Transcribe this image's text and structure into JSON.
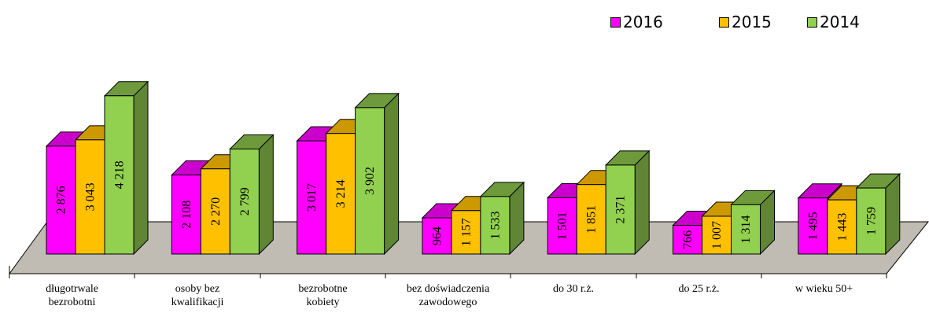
{
  "chart_data": {
    "type": "bar",
    "categories": [
      [
        "długotrwale",
        "bezrobotni"
      ],
      [
        "osoby bez",
        "kwalifikacji"
      ],
      [
        "bezrobotne",
        "kobiety"
      ],
      [
        "bez doświadczenia",
        "zawodowego"
      ],
      [
        "do 30 r.ż."
      ],
      [
        "do 25 r.ż."
      ],
      [
        "w wieku 50+"
      ]
    ],
    "series": [
      {
        "name": "2016",
        "color": "#ff00ff",
        "top": "#cc00cc",
        "side": "#990099",
        "values": [
          2876,
          2108,
          3017,
          964,
          1501,
          766,
          1495
        ],
        "labels": [
          "2 876",
          "2 108",
          "3 017",
          "964",
          "1 501",
          "766",
          "1 495"
        ]
      },
      {
        "name": "2015",
        "color": "#ffc000",
        "top": "#cc9900",
        "side": "#b38600",
        "values": [
          3043,
          2270,
          3214,
          1157,
          1851,
          1007,
          1443
        ],
        "labels": [
          "3 043",
          "2 270",
          "3 214",
          "1 157",
          "1 851",
          "1 007",
          "1 443"
        ]
      },
      {
        "name": "2014",
        "color": "#92d050",
        "top": "#6e9a3c",
        "side": "#5f8535",
        "values": [
          4218,
          2799,
          3902,
          1533,
          2371,
          1314,
          1759
        ],
        "labels": [
          "4 218",
          "2 799",
          "3 902",
          "1 533",
          "2 371",
          "1 314",
          "1 759"
        ]
      }
    ],
    "legend_position": "top-right",
    "floor_color": "#c0bcb4",
    "grid": false
  }
}
